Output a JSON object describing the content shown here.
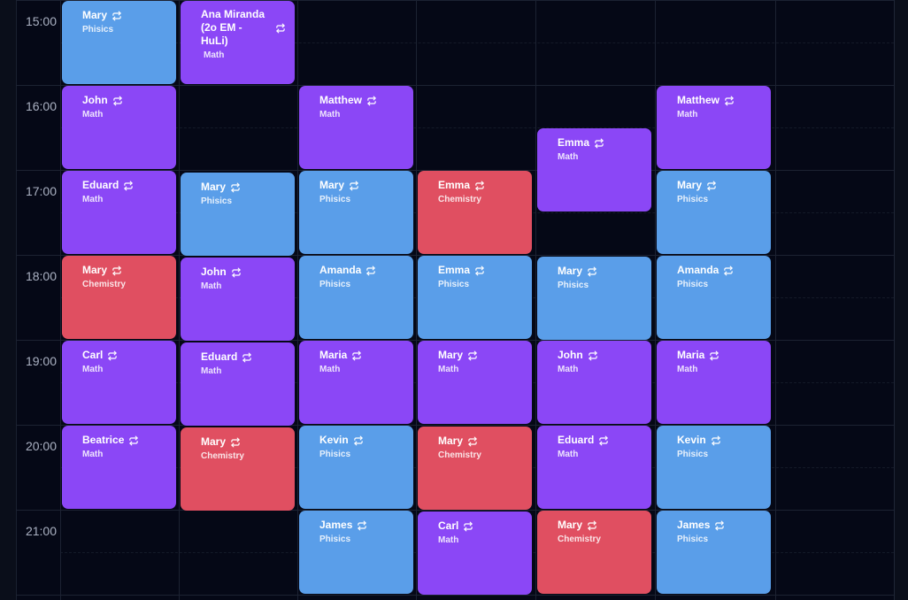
{
  "calendar": {
    "times": [
      "15:00",
      "16:00",
      "17:00",
      "18:00",
      "19:00",
      "20:00",
      "21:00"
    ],
    "colors": {
      "background": "#050816",
      "physics": "#5a9ee9",
      "math": "#8b47f6",
      "chemistry": "#e04f61",
      "time_text": "#aab1c2"
    },
    "events": [
      {
        "col": 0,
        "start": 0,
        "dur": 1,
        "name": "Mary",
        "subject": "Phisics",
        "type": "physics"
      },
      {
        "col": 0,
        "start": 1,
        "dur": 1,
        "name": "John",
        "subject": "Math",
        "type": "math"
      },
      {
        "col": 0,
        "start": 2,
        "dur": 1,
        "name": "Eduard",
        "subject": "Math",
        "type": "math"
      },
      {
        "col": 0,
        "start": 3,
        "dur": 1,
        "name": "Mary",
        "subject": "Chemistry",
        "type": "chemistry"
      },
      {
        "col": 0,
        "start": 4,
        "dur": 1,
        "name": "Carl",
        "subject": "Math",
        "type": "math"
      },
      {
        "col": 0,
        "start": 5,
        "dur": 1,
        "name": "Beatrice",
        "subject": "Math",
        "type": "math"
      },
      {
        "col": 1,
        "start": 0,
        "dur": 1,
        "name": "Ana Miranda (2o EM - HuLi)",
        "subject": "Math",
        "type": "math",
        "wrap": true
      },
      {
        "col": 1,
        "start": 2.02,
        "dur": 1,
        "name": "Mary",
        "subject": "Phisics",
        "type": "physics"
      },
      {
        "col": 1,
        "start": 3.02,
        "dur": 1,
        "name": "John",
        "subject": "Math",
        "type": "math"
      },
      {
        "col": 1,
        "start": 4.02,
        "dur": 1,
        "name": "Eduard",
        "subject": "Math",
        "type": "math"
      },
      {
        "col": 1,
        "start": 5.02,
        "dur": 1,
        "name": "Mary",
        "subject": "Chemistry",
        "type": "chemistry"
      },
      {
        "col": 2,
        "start": 1,
        "dur": 1,
        "name": "Matthew",
        "subject": "Math",
        "type": "math"
      },
      {
        "col": 2,
        "start": 2,
        "dur": 1,
        "name": "Mary",
        "subject": "Phisics",
        "type": "physics"
      },
      {
        "col": 2,
        "start": 3,
        "dur": 1,
        "name": "Amanda",
        "subject": "Phisics",
        "type": "physics"
      },
      {
        "col": 2,
        "start": 4,
        "dur": 1,
        "name": "Maria",
        "subject": "Math",
        "type": "math"
      },
      {
        "col": 2,
        "start": 5,
        "dur": 1,
        "name": "Kevin",
        "subject": "Phisics",
        "type": "physics"
      },
      {
        "col": 2,
        "start": 6,
        "dur": 1,
        "name": "James",
        "subject": "Phisics",
        "type": "physics"
      },
      {
        "col": 3,
        "start": 2,
        "dur": 1,
        "name": "Emma",
        "subject": "Chemistry",
        "type": "chemistry"
      },
      {
        "col": 3,
        "start": 3,
        "dur": 1,
        "name": "Emma",
        "subject": "Phisics",
        "type": "physics"
      },
      {
        "col": 3,
        "start": 4,
        "dur": 1,
        "name": "Mary",
        "subject": "Math",
        "type": "math"
      },
      {
        "col": 3,
        "start": 5.01,
        "dur": 1,
        "name": "Mary",
        "subject": "Chemistry",
        "type": "chemistry"
      },
      {
        "col": 3,
        "start": 6.01,
        "dur": 1,
        "name": "Carl",
        "subject": "Math",
        "type": "math"
      },
      {
        "col": 4,
        "start": 1.5,
        "dur": 1,
        "name": "Emma",
        "subject": "Math",
        "type": "math"
      },
      {
        "col": 4,
        "start": 3.01,
        "dur": 1,
        "name": "Mary",
        "subject": "Phisics",
        "type": "physics"
      },
      {
        "col": 4,
        "start": 4,
        "dur": 1,
        "name": "John",
        "subject": "Math",
        "type": "math"
      },
      {
        "col": 4,
        "start": 5,
        "dur": 1,
        "name": "Eduard",
        "subject": "Math",
        "type": "math"
      },
      {
        "col": 4,
        "start": 6,
        "dur": 1,
        "name": "Mary",
        "subject": "Chemistry",
        "type": "chemistry"
      },
      {
        "col": 5,
        "start": 1,
        "dur": 1,
        "name": "Matthew",
        "subject": "Math",
        "type": "math"
      },
      {
        "col": 5,
        "start": 2,
        "dur": 1,
        "name": "Mary",
        "subject": "Phisics",
        "type": "physics"
      },
      {
        "col": 5,
        "start": 3,
        "dur": 1,
        "name": "Amanda",
        "subject": "Phisics",
        "type": "physics"
      },
      {
        "col": 5,
        "start": 4,
        "dur": 1,
        "name": "Maria",
        "subject": "Math",
        "type": "math"
      },
      {
        "col": 5,
        "start": 5,
        "dur": 1,
        "name": "Kevin",
        "subject": "Phisics",
        "type": "physics"
      },
      {
        "col": 5,
        "start": 6,
        "dur": 1,
        "name": "James",
        "subject": "Phisics",
        "type": "physics"
      }
    ]
  }
}
